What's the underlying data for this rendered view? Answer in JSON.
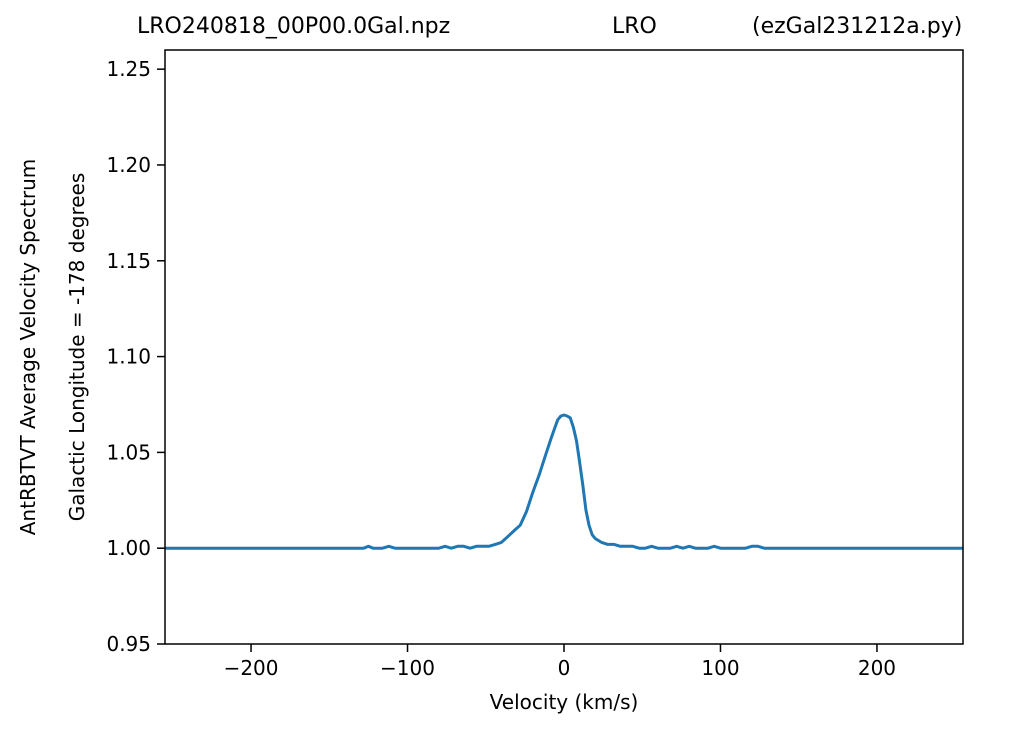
{
  "header": {
    "file": "LRO240818_00P00.0Gal.npz",
    "station": "LRO",
    "script": "(ezGal231212a.py)"
  },
  "chart_data": {
    "type": "line",
    "title": "",
    "xlabel": "Velocity (km/s)",
    "ylabel": "AntRBTVT Average Velocity Spectrum",
    "ylabel2": "Galactic Longitude = -178 degrees",
    "xlim": [
      -255,
      255
    ],
    "ylim": [
      0.95,
      1.26
    ],
    "xticks": [
      -200,
      -100,
      0,
      100,
      200
    ],
    "xtick_labels": [
      "−200",
      "−100",
      "0",
      "100",
      "200"
    ],
    "yticks": [
      0.95,
      1.0,
      1.05,
      1.1,
      1.15,
      1.2,
      1.25
    ],
    "ytick_labels": [
      "0.95",
      "1.00",
      "1.05",
      "1.10",
      "1.15",
      "1.20",
      "1.25"
    ],
    "grid": false,
    "line_color": "#1f77b4",
    "series": [
      {
        "values_x": [
          -255,
          -200,
          -140,
          -128,
          -125,
          -122,
          -116,
          -112,
          -108,
          -100,
          -90,
          -86,
          -80,
          -76,
          -72,
          -68,
          -64,
          -60,
          -56,
          -52,
          -48,
          -44,
          -40,
          -36,
          -32,
          -28,
          -24,
          -20,
          -16,
          -12,
          -8,
          -4,
          -2,
          0,
          2,
          4,
          6,
          8,
          10,
          12,
          14,
          16,
          18,
          20,
          24,
          28,
          32,
          36,
          40,
          44,
          48,
          52,
          56,
          60,
          64,
          68,
          72,
          76,
          80,
          84,
          88,
          92,
          96,
          100,
          104,
          108,
          112,
          116,
          120,
          124,
          128,
          132,
          140,
          200,
          255
        ],
        "values_y": [
          1.0,
          1.0,
          1.0,
          1.0,
          1.001,
          1.0,
          1.0,
          1.001,
          1.0,
          1.0,
          1.0,
          1.0,
          1.0,
          1.001,
          1.0,
          1.001,
          1.001,
          1.0,
          1.001,
          1.001,
          1.001,
          1.002,
          1.003,
          1.006,
          1.009,
          1.012,
          1.019,
          1.029,
          1.038,
          1.048,
          1.058,
          1.067,
          1.069,
          1.0695,
          1.069,
          1.068,
          1.063,
          1.056,
          1.045,
          1.033,
          1.02,
          1.012,
          1.007,
          1.005,
          1.003,
          1.002,
          1.002,
          1.001,
          1.001,
          1.001,
          1.0,
          1.0,
          1.001,
          1.0,
          1.0,
          1.0,
          1.001,
          1.0,
          1.001,
          1.0,
          1.0,
          1.0,
          1.001,
          1.0,
          1.0,
          1.0,
          1.0,
          1.0,
          1.001,
          1.001,
          1.0,
          1.0,
          1.0,
          1.0,
          1.0
        ]
      }
    ]
  }
}
